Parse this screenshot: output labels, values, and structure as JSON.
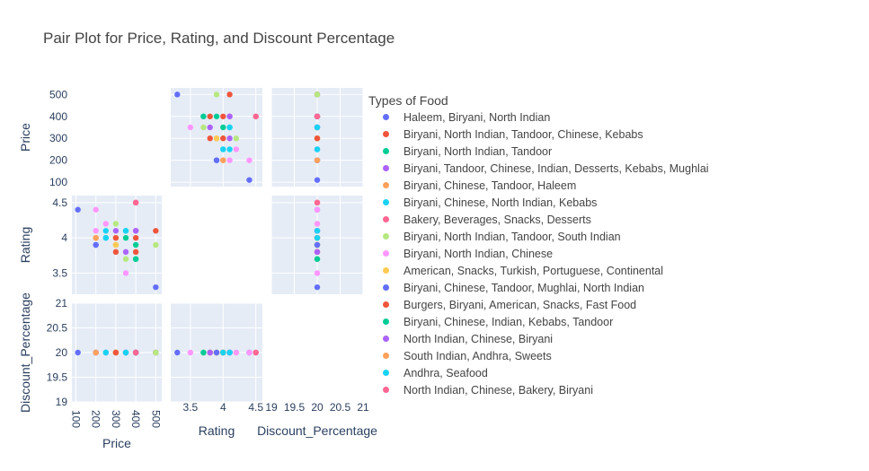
{
  "chart_data": {
    "type": "scatter",
    "title": "Pair Plot for Price, Rating, and Discount Percentage",
    "dimensions": [
      "Price",
      "Rating",
      "Discount_Percentage"
    ],
    "axis_ranges": {
      "Price": [
        80,
        530
      ],
      "Rating": [
        3.2,
        4.6
      ],
      "Discount_Percentage": [
        19,
        21
      ]
    },
    "ticks": {
      "Price": [
        100,
        200,
        300,
        400,
        500
      ],
      "Rating": [
        3.5,
        4,
        4.5
      ],
      "Discount_Percentage": [
        19,
        19.5,
        20,
        20.5,
        21
      ]
    },
    "tick_labels": {
      "Price": [
        "100",
        "200",
        "300",
        "400",
        "500"
      ],
      "Rating": [
        "3.5",
        "4",
        "4.5"
      ],
      "Discount_Percentage": [
        "19",
        "19.5",
        "20",
        "20.5",
        "21"
      ]
    },
    "legend_title": "Types of Food",
    "legend_position": "right",
    "grid": true,
    "series": [
      {
        "name": "Haleem, Biryani, North Indian",
        "color": "#636efa",
        "points": [
          [
            500,
            3.3,
            20
          ],
          [
            110,
            4.4,
            20
          ],
          [
            200,
            3.9,
            20
          ]
        ]
      },
      {
        "name": "Biryani, North Indian, Tandoor, Chinese, Kebabs",
        "color": "#EF553B",
        "points": [
          [
            500,
            4.1,
            20
          ],
          [
            400,
            4.0,
            20
          ],
          [
            300,
            3.8,
            20
          ]
        ]
      },
      {
        "name": "Biryani, North Indian, Tandoor",
        "color": "#00cc96",
        "points": [
          [
            400,
            3.7,
            20
          ],
          [
            400,
            3.9,
            20
          ]
        ]
      },
      {
        "name": "Biryani, Tandoor, Chinese, Indian, Desserts, Kebabs, Mughlai",
        "color": "#ab63fa",
        "points": [
          [
            400,
            4.1,
            20
          ],
          [
            300,
            4.1,
            20
          ]
        ]
      },
      {
        "name": "Biryani, Chinese, Tandoor, Haleem",
        "color": "#FFA15A",
        "points": [
          [
            300,
            3.9,
            20
          ],
          [
            200,
            4.0,
            20
          ]
        ]
      },
      {
        "name": "Biryani, Chinese, North Indian, Kebabs",
        "color": "#19d3f3",
        "points": [
          [
            350,
            4.1,
            20
          ],
          [
            250,
            4.1,
            20
          ],
          [
            250,
            4.0,
            20
          ]
        ]
      },
      {
        "name": "Bakery, Beverages, Snacks, Desserts",
        "color": "#FF6692",
        "points": [
          [
            400,
            4.5,
            20
          ]
        ]
      },
      {
        "name": "Biryani, North Indian, Tandoor, South Indian",
        "color": "#B6E880",
        "points": [
          [
            500,
            3.9,
            20
          ],
          [
            300,
            4.2,
            20
          ],
          [
            350,
            3.7,
            20
          ]
        ]
      },
      {
        "name": "Biryani, North Indian, Chinese",
        "color": "#FF97FF",
        "points": [
          [
            350,
            3.5,
            20
          ],
          [
            250,
            4.2,
            20
          ],
          [
            200,
            4.4,
            20
          ],
          [
            200,
            4.1,
            20
          ]
        ]
      },
      {
        "name": "American, Snacks, Turkish, Portuguese, Continental",
        "color": "#FECB52",
        "points": [
          [
            300,
            3.9,
            20
          ],
          [
            300,
            4.0,
            20
          ]
        ]
      },
      {
        "name": "Biryani, Chinese, Tandoor, Mughlai, North Indian",
        "color": "#636efa",
        "points": [
          [
            200,
            3.9,
            20
          ]
        ]
      },
      {
        "name": "Burgers, Biryani, American, Snacks, Fast Food",
        "color": "#EF553B",
        "points": [
          [
            400,
            3.8,
            20
          ],
          [
            300,
            4.0,
            20
          ]
        ]
      },
      {
        "name": "Biryani, Chinese, Indian, Kebabs, Tandoor",
        "color": "#00cc96",
        "points": [
          [
            400,
            3.7,
            20
          ],
          [
            350,
            4.0,
            20
          ]
        ]
      },
      {
        "name": "North Indian, Chinese, Biryani",
        "color": "#ab63fa",
        "points": [
          [
            400,
            4.1,
            20
          ],
          [
            350,
            3.8,
            20
          ]
        ]
      },
      {
        "name": "South Indian, Andhra, Sweets",
        "color": "#FFA15A",
        "points": [
          [
            200,
            4.0,
            20
          ]
        ]
      },
      {
        "name": "Andhra, Seafood",
        "color": "#19d3f3",
        "points": [
          [
            350,
            4.1,
            20
          ],
          [
            250,
            4.0,
            20
          ]
        ]
      },
      {
        "name": "North Indian, Chinese, Bakery, Biryani",
        "color": "#FF6692",
        "points": [
          [
            400,
            4.5,
            20
          ]
        ]
      }
    ]
  }
}
